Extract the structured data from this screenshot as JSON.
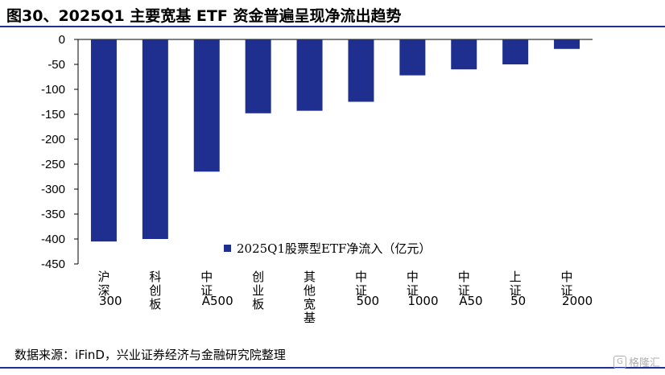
{
  "header": {
    "title": "图30、2025Q1 主要宽基 ETF 资金普遍呈现净流出趋势"
  },
  "chart_data": {
    "type": "bar",
    "categories": [
      "沪深300",
      "科创板",
      "中证A500",
      "创业板",
      "其他宽基",
      "中证500",
      "中证1000",
      "中证A50",
      "上证50",
      "中证2000"
    ],
    "series": [
      {
        "name": "2025Q1股票型ETF净流入（亿元）",
        "values": [
          -405,
          -400,
          -265,
          -148,
          -143,
          -125,
          -72,
          -60,
          -50,
          -19
        ]
      }
    ],
    "ylim": [
      -450,
      0
    ],
    "yticks": [
      0,
      -50,
      -100,
      -150,
      -200,
      -250,
      -300,
      -350,
      -400,
      -450
    ],
    "legend_position": "center",
    "grid": false,
    "colors": {
      "bar": "#1f2f8f",
      "axis": "#000000"
    }
  },
  "footer": {
    "source": "数据来源：iFinD，兴业证券经济与金融研究院整理",
    "watermark": "格隆汇"
  }
}
